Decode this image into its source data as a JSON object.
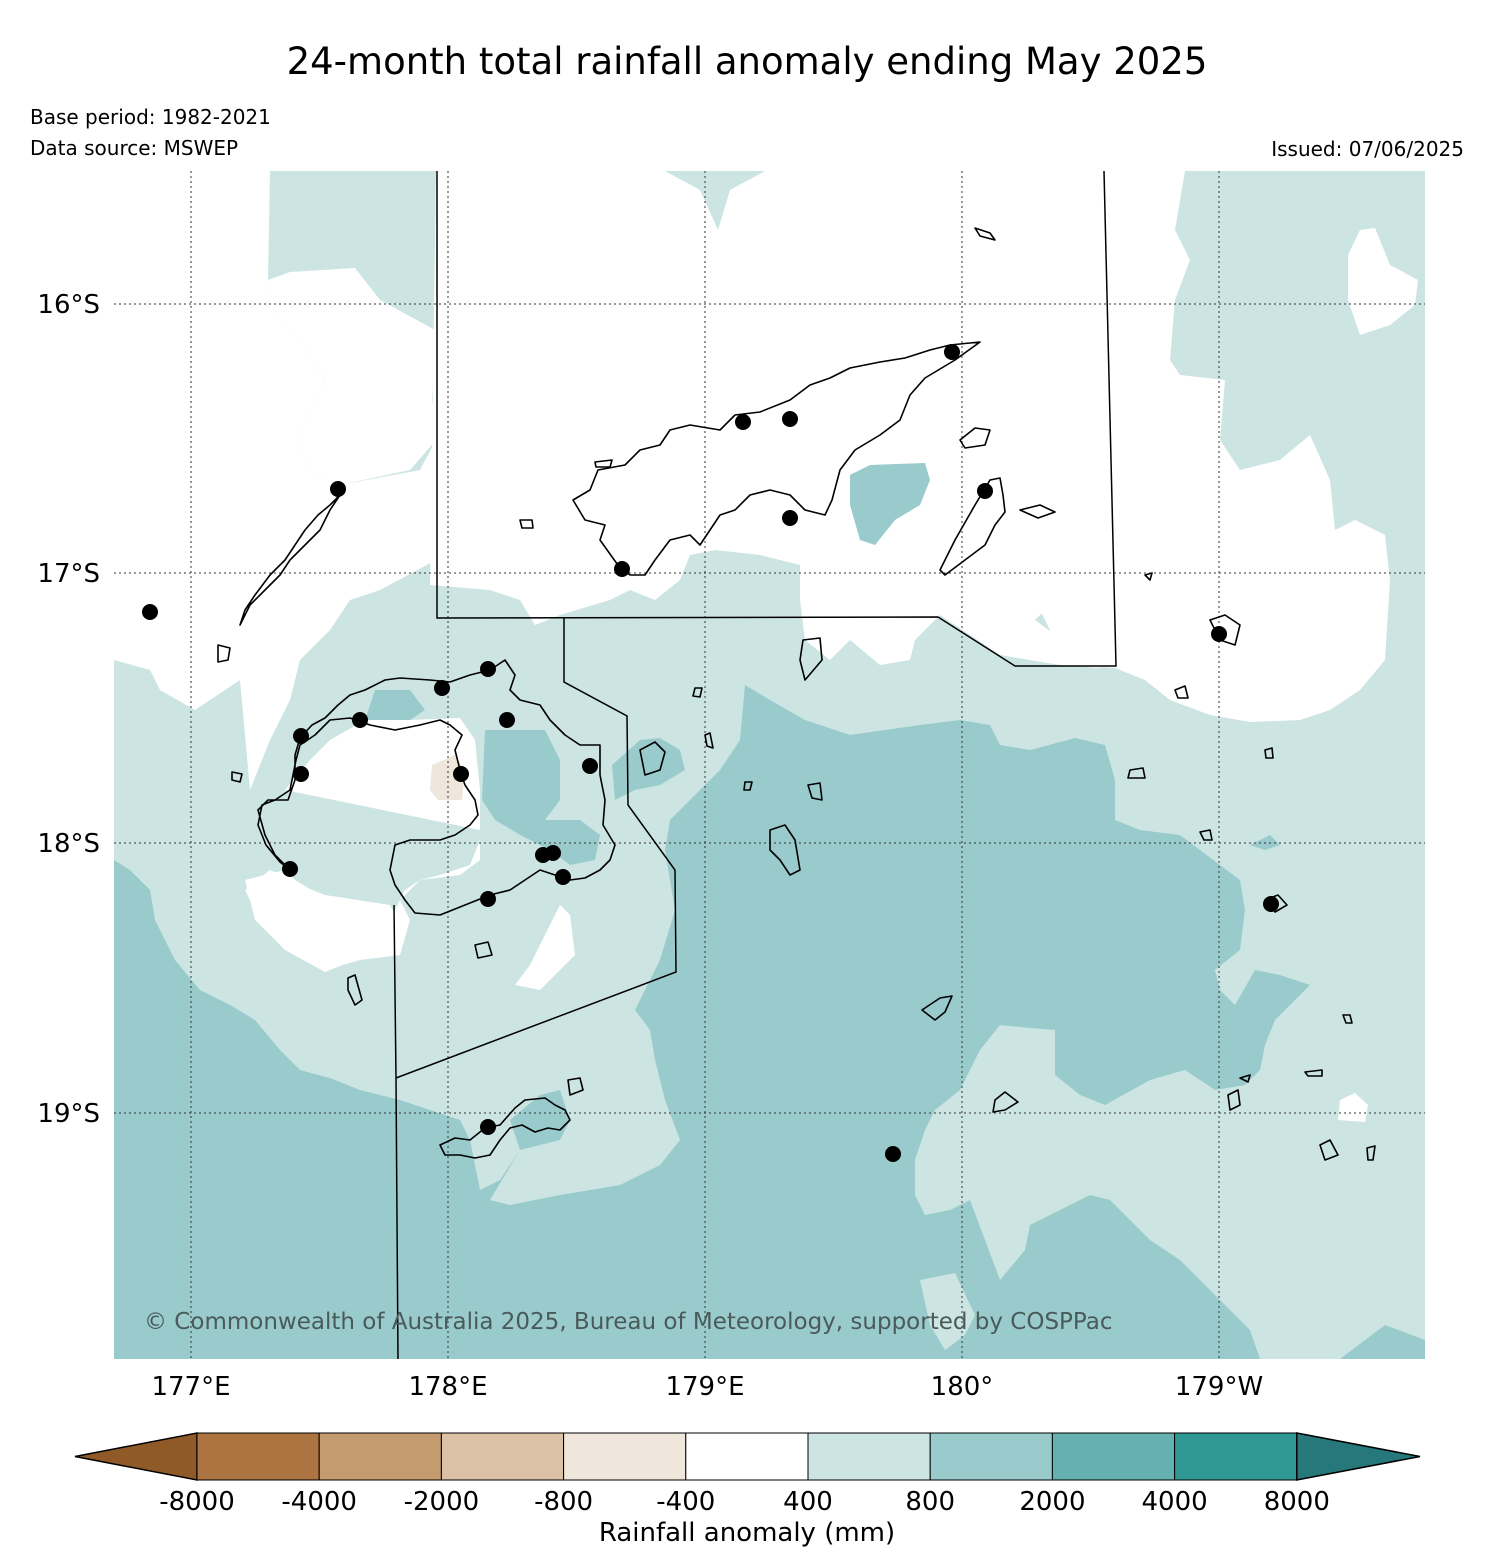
{
  "header": {
    "title": "24-month total rainfall anomaly ending May 2025",
    "base_period": "Base period: 1982-2021",
    "data_source": "Data source: MSWEP",
    "issued": "Issued: 07/06/2025"
  },
  "map": {
    "lat_labels": [
      "16°S",
      "17°S",
      "18°S",
      "19°S"
    ],
    "lon_labels": [
      "177°E",
      "178°E",
      "179°E",
      "180°",
      "179°W"
    ],
    "copyright": "© Commonwealth of Australia 2025, Bureau of Meteorology, supported by COSPPac",
    "colors": {
      "400_800": "#cce5e3",
      "800_2000": "#9acbcc",
      "neg800_neg400": "#efe6dc",
      "land_outline": "#000000",
      "station": "#000000"
    }
  },
  "colorbar": {
    "title": "Rainfall anomaly (mm)",
    "tick_labels": [
      "-8000",
      "-4000",
      "-2000",
      "-800",
      "-400",
      "400",
      "800",
      "2000",
      "4000",
      "8000"
    ],
    "colors": [
      "#8f5a28",
      "#ac7440",
      "#c49a6f",
      "#dbc2a6",
      "#efe6dc",
      "#ffffff",
      "#cce5e3",
      "#9acbcc",
      "#65b0b0",
      "#309893",
      "#26787a"
    ]
  }
}
